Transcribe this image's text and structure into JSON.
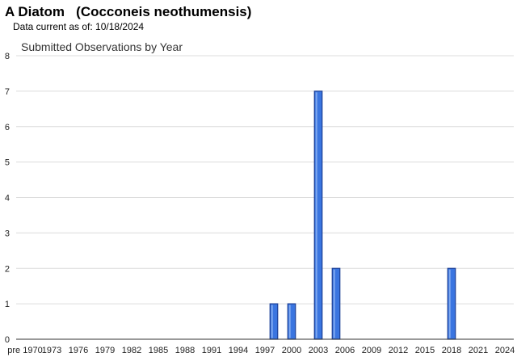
{
  "header": {
    "title": "A Diatom   (Cocconeis neothumensis)",
    "data_current": "Data current as of: 10/18/2024"
  },
  "chart_data": {
    "type": "bar",
    "title": "Submitted Observations by Year",
    "xlabel": "",
    "ylabel": "",
    "ylim": [
      0,
      8
    ],
    "yticks": [
      0,
      1,
      2,
      3,
      4,
      5,
      6,
      7,
      8
    ],
    "xticks": [
      "pre 1970",
      "1973",
      "1976",
      "1979",
      "1982",
      "1985",
      "1988",
      "1991",
      "1994",
      "1997",
      "2000",
      "2003",
      "2006",
      "2009",
      "2012",
      "2015",
      "2018",
      "2021",
      "2024"
    ],
    "x_range": [
      1969,
      2025
    ],
    "grid": "horizontal",
    "legend": "none",
    "bar_color": "#3a75e0",
    "bar_edge_color": "#1c3f96",
    "bars": [
      {
        "x": 1998,
        "value": 1
      },
      {
        "x": 2000,
        "value": 1
      },
      {
        "x": 2003,
        "value": 7
      },
      {
        "x": 2005,
        "value": 2
      },
      {
        "x": 2018,
        "value": 2
      }
    ]
  }
}
